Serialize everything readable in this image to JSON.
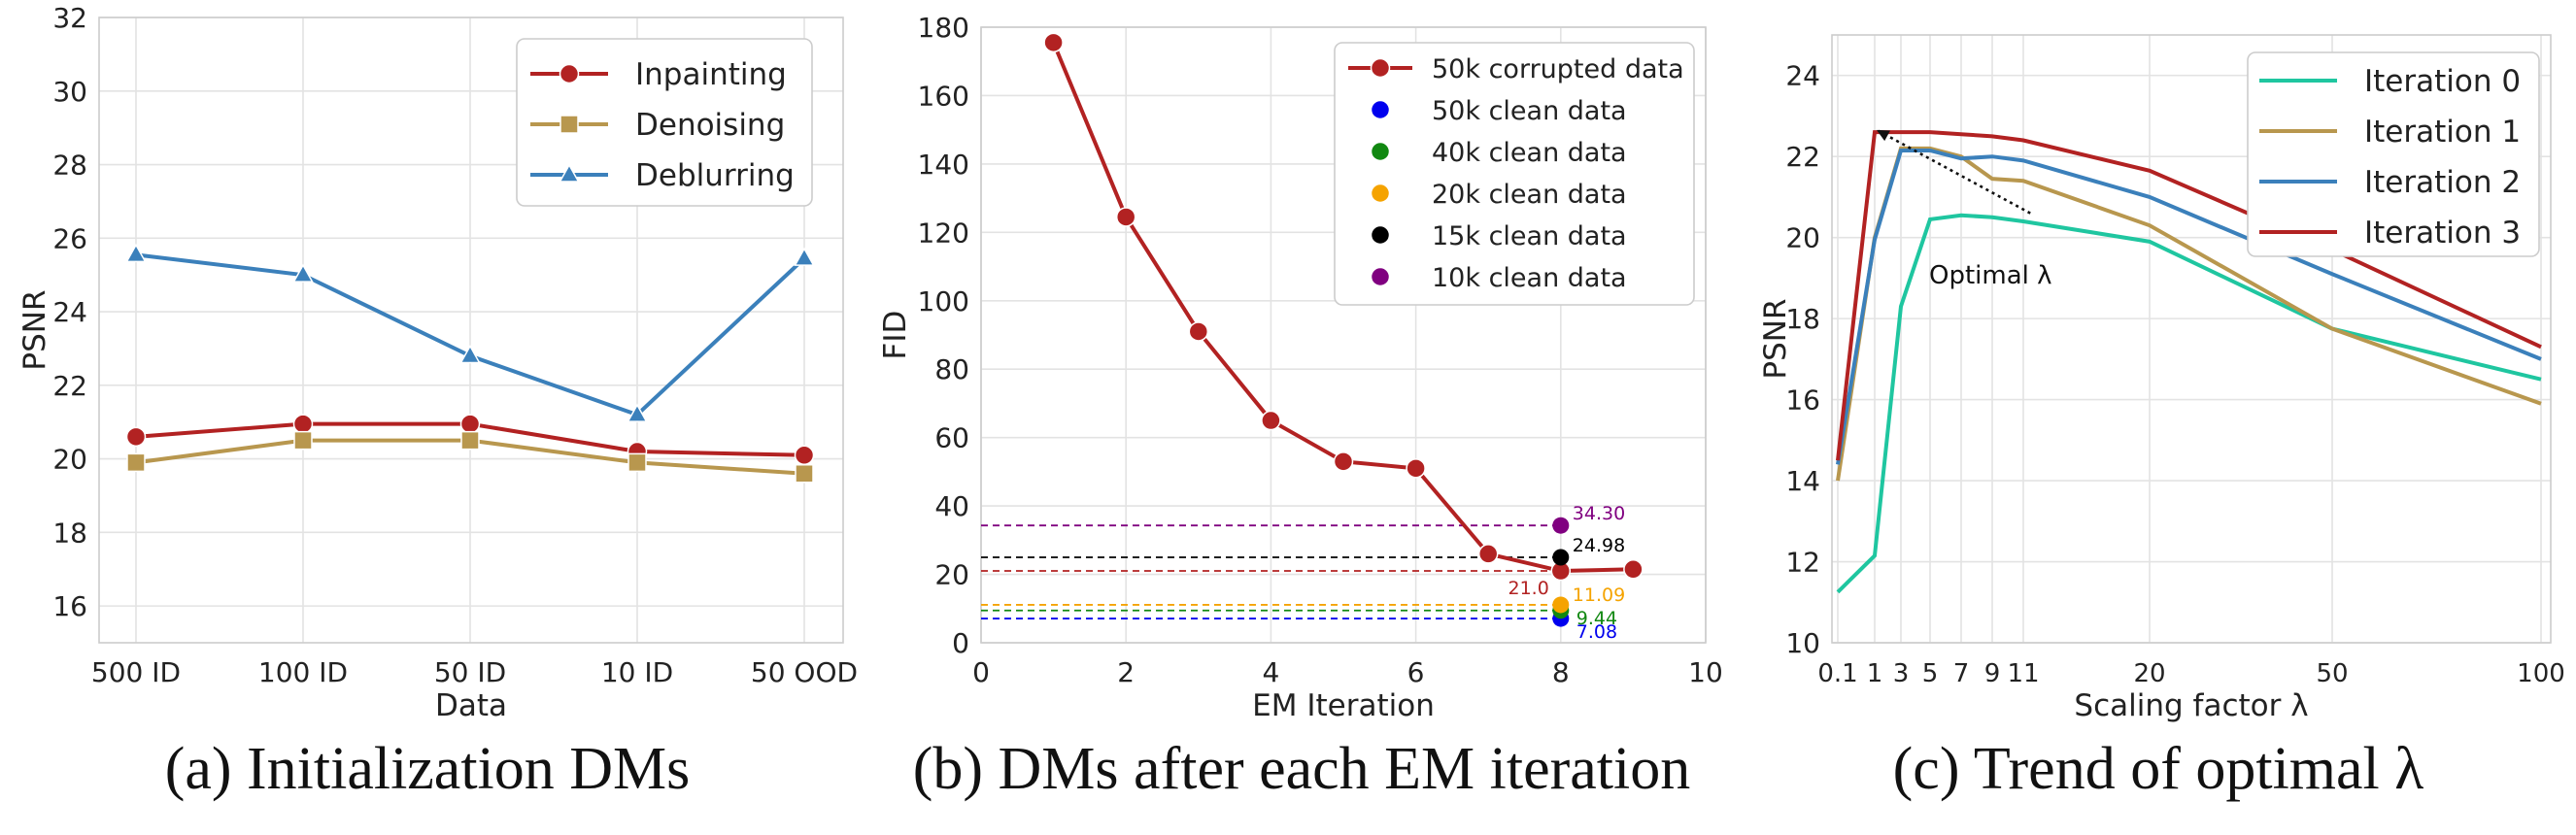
{
  "chart_data": [
    {
      "type": "line",
      "caption": "(a) Initialization DMs",
      "xlabel": "Data",
      "ylabel": "PSNR",
      "categories": [
        "500 ID",
        "100 ID",
        "50 ID",
        "10 ID",
        "50 OOD"
      ],
      "ylim": [
        15,
        32
      ],
      "yticks": [
        16,
        18,
        20,
        22,
        24,
        26,
        28,
        30,
        32
      ],
      "grid": true,
      "legend": "top-right",
      "series": [
        {
          "name": "Inpainting",
          "marker": "circle",
          "color": "#b22222",
          "values": [
            20.6,
            20.95,
            20.95,
            20.2,
            20.1
          ]
        },
        {
          "name": "Denoising",
          "marker": "square",
          "color": "#b8974e",
          "values": [
            19.9,
            20.5,
            20.5,
            19.9,
            19.6
          ]
        },
        {
          "name": "Deblurring",
          "marker": "triangle",
          "color": "#3b80bb",
          "values": [
            25.55,
            25.0,
            22.8,
            21.2,
            25.45
          ]
        }
      ]
    },
    {
      "type": "line",
      "caption": "(b) DMs after each EM iteration",
      "xlabel": "EM Iteration",
      "ylabel": "FID",
      "xlim": [
        0,
        10
      ],
      "ylim": [
        0,
        180
      ],
      "xticks": [
        0,
        2,
        4,
        6,
        8,
        10
      ],
      "yticks": [
        0,
        20,
        40,
        60,
        80,
        100,
        120,
        140,
        160,
        180
      ],
      "grid": true,
      "legend": "top-right",
      "series": [
        {
          "name": "50k corrupted data",
          "color": "#b22222",
          "x": [
            1,
            2,
            3,
            4,
            5,
            6,
            7,
            8,
            9
          ],
          "values": [
            175.5,
            124.5,
            91.0,
            65.0,
            53.0,
            51.0,
            26.0,
            21.0,
            21.5
          ]
        }
      ],
      "reference_points": [
        {
          "name": "50k clean data",
          "color": "#0000ee",
          "x": 8,
          "value": 7.08,
          "label": "7.08"
        },
        {
          "name": "40k clean data",
          "color": "#118811",
          "x": 8,
          "value": 9.44,
          "label": "9.44"
        },
        {
          "name": "20k clean data",
          "color": "#f5a300",
          "x": 8,
          "value": 11.09,
          "label": "11.09"
        },
        {
          "name": "15k clean data",
          "color": "#000000",
          "x": 8,
          "value": 24.98,
          "label": "24.98"
        },
        {
          "name": "10k clean data",
          "color": "#800080",
          "x": 8,
          "value": 34.3,
          "label": "34.30"
        }
      ],
      "annotation": {
        "text": "21.0",
        "color": "#b22222",
        "x": 8,
        "value": 21.0
      }
    },
    {
      "type": "line",
      "caption": "(c) Trend of optimal λ",
      "xlabel": "Scaling factor λ",
      "ylabel": "PSNR",
      "xlim": [
        0,
        100
      ],
      "ylim": [
        10,
        25
      ],
      "xticks": [
        0.1,
        1,
        3,
        5,
        7,
        9,
        11,
        20,
        50,
        100
      ],
      "xtick_labels": [
        "0.1",
        "1",
        "3",
        "5",
        "7",
        "9",
        "11",
        "20",
        "50",
        "100"
      ],
      "yticks": [
        10,
        12,
        14,
        16,
        18,
        20,
        22,
        24
      ],
      "grid": true,
      "legend": "top-right",
      "series": [
        {
          "name": "Iteration 0",
          "color": "#1fc6a0",
          "x": [
            0.1,
            1,
            3,
            5,
            7,
            9,
            11,
            20,
            50,
            100
          ],
          "values": [
            11.25,
            12.15,
            18.3,
            20.45,
            20.55,
            20.5,
            20.4,
            19.9,
            17.75,
            16.5
          ]
        },
        {
          "name": "Iteration 1",
          "color": "#b8974e",
          "x": [
            0.1,
            1,
            3,
            5,
            7,
            9,
            11,
            20,
            50,
            100
          ],
          "values": [
            14.0,
            20.0,
            22.2,
            22.2,
            22.0,
            21.45,
            21.4,
            20.3,
            17.75,
            15.9
          ]
        },
        {
          "name": "Iteration 2",
          "color": "#3b80bb",
          "x": [
            0.1,
            1,
            3,
            5,
            7,
            9,
            11,
            20,
            50,
            100
          ],
          "values": [
            14.4,
            19.95,
            22.15,
            22.15,
            21.95,
            22.0,
            21.9,
            21.0,
            19.1,
            17.0
          ]
        },
        {
          "name": "Iteration 3",
          "color": "#b22222",
          "x": [
            0.1,
            1,
            3,
            5,
            7,
            9,
            11,
            20,
            50,
            100
          ],
          "values": [
            14.5,
            22.6,
            22.6,
            22.6,
            22.55,
            22.5,
            22.4,
            21.65,
            19.7,
            17.3
          ]
        }
      ],
      "annotation": {
        "text": "Optimal λ",
        "arrow_from": {
          "x": 11.5,
          "value": 20.6
        },
        "arrow_to": {
          "x": 1,
          "value": 22.8
        }
      }
    }
  ]
}
